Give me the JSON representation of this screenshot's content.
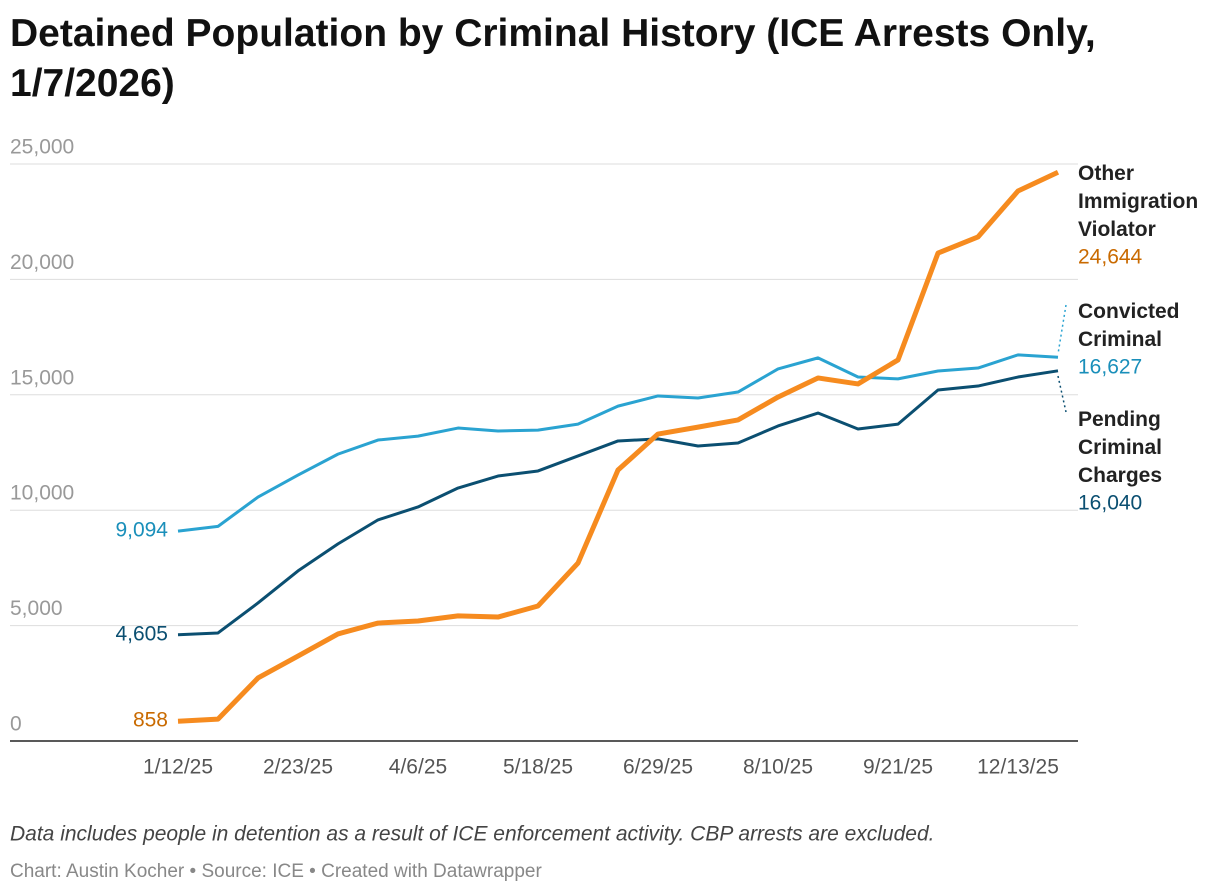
{
  "chart_data": {
    "type": "line",
    "title": "Detained Population by Criminal History (ICE Arrests Only, 1/7/2026)",
    "note": "Data includes people in detention as a result of ICE enforcement activity. CBP arrests are excluded.",
    "credit": "Chart: Austin Kocher • Source: ICE • Created with Datawrapper",
    "categories": [
      "1/12/25",
      null,
      null,
      "2/23/25",
      null,
      null,
      "4/6/25",
      null,
      null,
      "5/18/25",
      null,
      null,
      "6/29/25",
      null,
      null,
      "8/10/25",
      null,
      null,
      "9/21/25",
      null,
      null,
      "12/13/25",
      null
    ],
    "ylim": [
      0,
      25000
    ],
    "yticks": [
      0,
      {
        "value": 5000,
        "label": "5,000"
      },
      {
        "value": 10000,
        "label": "10,000"
      },
      {
        "value": 15000,
        "label": "15,000"
      },
      {
        "value": 20000,
        "label": "20,000"
      },
      {
        "value": 25000,
        "label": "25,000"
      }
    ],
    "grid": true,
    "series": [
      {
        "name": "Convicted Criminal",
        "color": "#2aa3d1",
        "label_color": "#1a8fba",
        "width": 3,
        "values": [
          9094,
          9300,
          10570,
          11520,
          12430,
          13040,
          13210,
          13560,
          13430,
          13470,
          13730,
          14510,
          14950,
          14860,
          15120,
          16120,
          16600,
          15770,
          15690,
          16030,
          16160,
          16730,
          16627
        ],
        "value_labels": [
          "9,094",
          null,
          null,
          null,
          null,
          null,
          null,
          null,
          null,
          null,
          null,
          null,
          null,
          null,
          null,
          null,
          null,
          null,
          null,
          null,
          null,
          null,
          "16,627"
        ]
      },
      {
        "name": "Pending Criminal Charges",
        "color": "#0b4f71",
        "label_color": "#0b4f71",
        "width": 3,
        "values": [
          4605,
          4680,
          5980,
          7370,
          8540,
          9580,
          10140,
          10960,
          11480,
          11700,
          12350,
          13000,
          13090,
          12780,
          12910,
          13650,
          14210,
          13520,
          13730,
          15210,
          15380,
          15770,
          16040
        ],
        "value_labels": [
          "4,605",
          null,
          null,
          null,
          null,
          null,
          null,
          null,
          null,
          null,
          null,
          null,
          null,
          null,
          null,
          null,
          null,
          null,
          null,
          null,
          null,
          null,
          "16,040"
        ]
      },
      {
        "name": "Other Immigration Violator",
        "color": "#f68b1f",
        "label_color": "#c96a00",
        "width": 5,
        "values": [
          858,
          950,
          2730,
          3680,
          4640,
          5110,
          5200,
          5420,
          5370,
          5850,
          7710,
          11740,
          13300,
          13600,
          13910,
          14900,
          15730,
          15470,
          16510,
          21140,
          21840,
          23830,
          24644
        ],
        "value_labels": [
          "858",
          null,
          null,
          null,
          null,
          null,
          null,
          null,
          null,
          null,
          null,
          null,
          null,
          null,
          null,
          null,
          null,
          null,
          null,
          null,
          null,
          null,
          "24,644"
        ]
      }
    ]
  }
}
